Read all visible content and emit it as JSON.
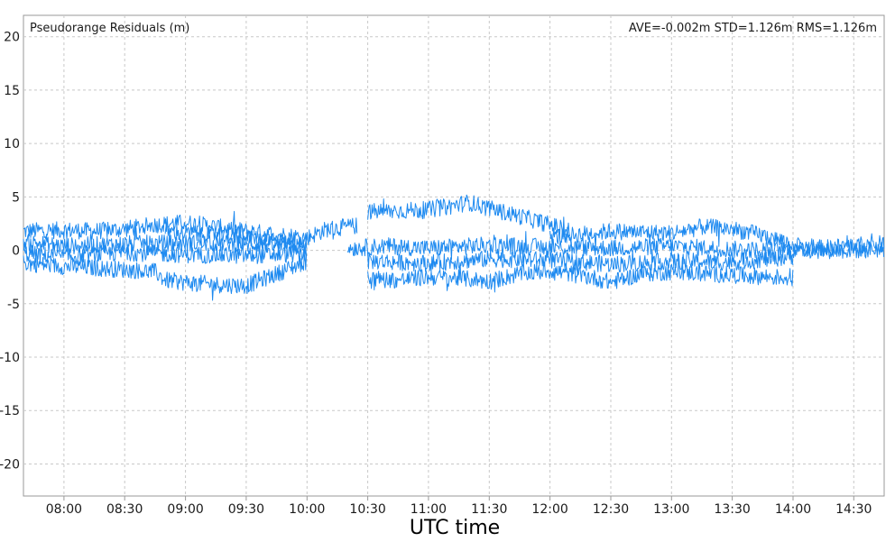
{
  "chart_data": {
    "type": "line",
    "title": "Pseudorange Residuals (m)",
    "stats_text": "AVE=-0.002m STD=1.126m RMS=1.126m",
    "stats": {
      "AVE": -0.002,
      "STD": 1.126,
      "RMS": 1.126,
      "unit": "m"
    },
    "xlabel": "UTC time",
    "ylabel": "",
    "xlim": [
      "07:40",
      "14:45"
    ],
    "ylim": [
      -23,
      22
    ],
    "x_ticks": [
      "08:00",
      "08:30",
      "09:00",
      "09:30",
      "10:00",
      "10:30",
      "11:00",
      "11:30",
      "12:00",
      "12:30",
      "13:00",
      "13:30",
      "14:00",
      "14:30"
    ],
    "y_ticks": [
      20,
      15,
      10,
      5,
      0,
      -5,
      -10,
      -15,
      -20
    ],
    "grid": true,
    "grid_style": "dashed",
    "line_color": "#1e8af0",
    "series": [
      {
        "time": [
          "07:40",
          "08:00",
          "08:15",
          "08:30",
          "08:45",
          "09:00",
          "09:30",
          "10:00",
          "10:10",
          "10:25"
        ],
        "values": [
          1.8,
          1.9,
          1.8,
          2.0,
          2.4,
          2.6,
          1.8,
          1.2,
          2.0,
          2.3
        ]
      },
      {
        "time": [
          "07:40",
          "08:00",
          "08:30",
          "08:45",
          "08:50",
          "09:00",
          "09:15",
          "09:30",
          "09:45",
          "10:00"
        ],
        "values": [
          -1.2,
          -1.5,
          -1.8,
          -2.0,
          -2.8,
          -3.0,
          -3.2,
          -3.3,
          -2.2,
          -1.0
        ]
      },
      {
        "time": [
          "07:40",
          "08:00",
          "08:30",
          "09:00",
          "09:30",
          "10:00"
        ],
        "values": [
          0.8,
          0.4,
          0.6,
          0.7,
          0.6,
          0.3
        ]
      },
      {
        "time": [
          "07:40",
          "08:00",
          "08:30",
          "09:00",
          "09:30",
          "10:00"
        ],
        "values": [
          -0.3,
          -0.6,
          -0.2,
          -0.4,
          -0.5,
          -0.3
        ]
      },
      {
        "time": [
          "08:50",
          "09:00",
          "09:15",
          "09:30",
          "09:45",
          "10:00"
        ],
        "values": [
          1.8,
          1.6,
          1.5,
          1.2,
          0.8,
          0.5
        ]
      },
      {
        "time": [
          "10:30",
          "10:45",
          "11:00",
          "11:10",
          "11:20",
          "11:30",
          "11:45",
          "12:00",
          "12:10"
        ],
        "values": [
          3.6,
          3.7,
          3.8,
          4.1,
          4.5,
          3.9,
          3.2,
          2.4,
          1.8
        ]
      },
      {
        "time": [
          "10:30",
          "10:45",
          "11:00",
          "11:15",
          "11:30",
          "11:45",
          "12:00",
          "12:20",
          "12:30",
          "12:45",
          "13:00",
          "13:30",
          "14:00"
        ],
        "values": [
          -2.6,
          -2.8,
          -2.5,
          -2.6,
          -2.9,
          -2.2,
          -1.9,
          -2.5,
          -3.0,
          -2.2,
          -2.0,
          -2.3,
          -2.6
        ]
      },
      {
        "time": [
          "10:20",
          "10:40",
          "11:00",
          "11:30",
          "12:00",
          "12:30",
          "13:00",
          "13:30",
          "14:00",
          "14:30",
          "14:45"
        ],
        "values": [
          0.2,
          0.4,
          0.2,
          0.5,
          0.3,
          0.2,
          0.4,
          0.1,
          0.0,
          0.0,
          0.1
        ]
      },
      {
        "time": [
          "12:00",
          "12:15",
          "12:30",
          "13:00",
          "13:15",
          "13:30",
          "13:45",
          "14:00"
        ],
        "values": [
          1.2,
          1.5,
          1.8,
          1.6,
          2.2,
          2.0,
          1.4,
          0.6
        ]
      },
      {
        "time": [
          "10:30",
          "11:00",
          "11:30",
          "12:00",
          "12:30",
          "13:00",
          "13:30",
          "14:00"
        ],
        "values": [
          -1.0,
          -1.2,
          -0.8,
          -0.9,
          -1.3,
          -1.0,
          -1.1,
          -0.6
        ]
      },
      {
        "time": [
          "14:00",
          "14:15",
          "14:30",
          "14:45"
        ],
        "values": [
          0.4,
          0.2,
          0.5,
          0.6
        ]
      }
    ]
  }
}
